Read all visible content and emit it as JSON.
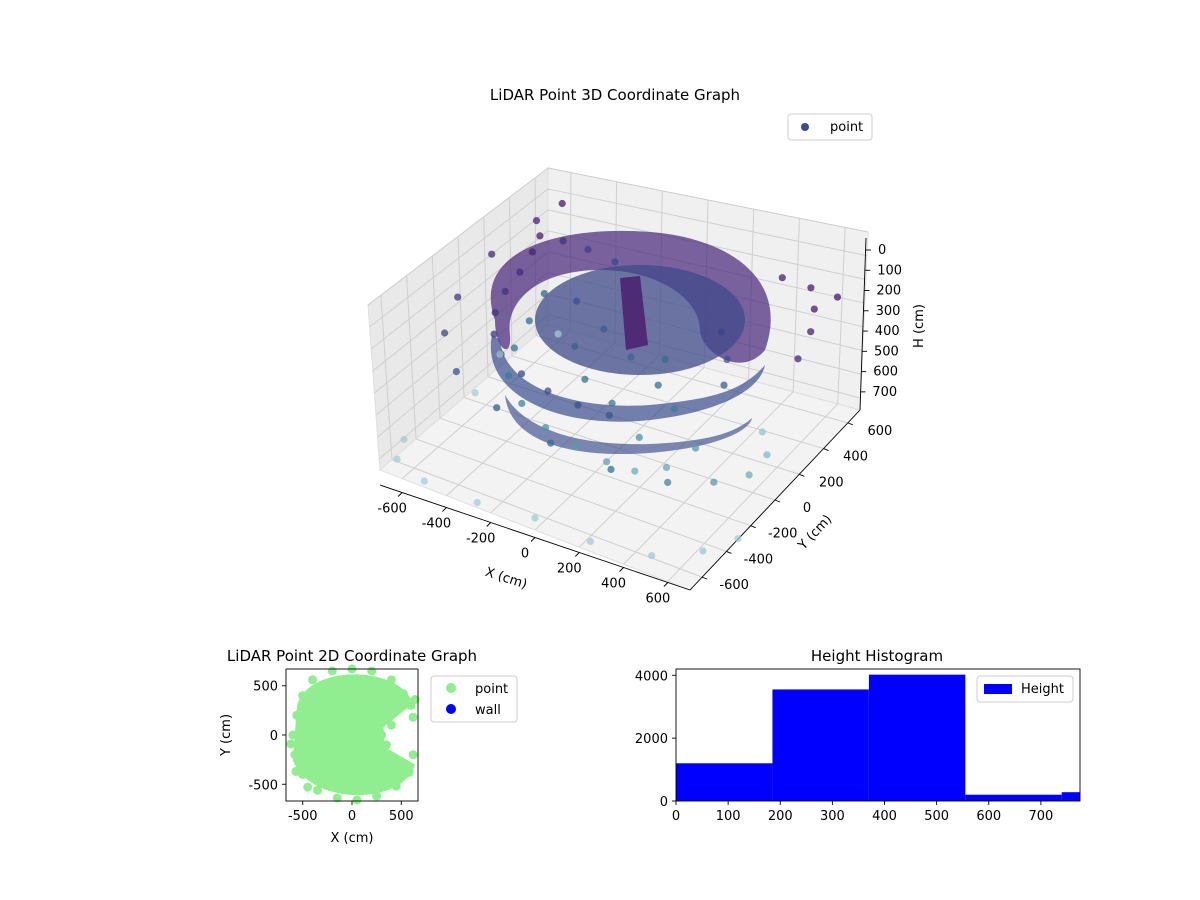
{
  "chart_data": [
    {
      "type": "scatter",
      "projection": "3d",
      "title": "LiDAR Point 3D Coordinate Graph",
      "xlabel": "X (cm)",
      "ylabel": "Y (cm)",
      "zlabel": "H (cm)",
      "xlim": [
        -700,
        700
      ],
      "ylim": [
        -700,
        700
      ],
      "zlim": [
        0,
        750
      ],
      "z_inverted": true,
      "xticks": [
        -600,
        -400,
        -200,
        0,
        200,
        400,
        600
      ],
      "yticks": [
        -600,
        -400,
        -200,
        0,
        200,
        400,
        600
      ],
      "zticks": [
        0,
        100,
        200,
        300,
        400,
        500,
        600,
        700
      ],
      "grid": true,
      "colormap": "viridis (color by height)",
      "legend": {
        "entries": [
          "point"
        ],
        "placement": "top-right"
      },
      "series": [
        {
          "name": "point",
          "color": "#3b4c8c",
          "points": [
            [
              -520,
              300,
              20
            ],
            [
              -500,
              200,
              40
            ],
            [
              -480,
              60,
              60
            ],
            [
              -470,
              -80,
              80
            ],
            [
              -440,
              -220,
              100
            ],
            [
              -380,
              -340,
              120
            ],
            [
              -300,
              -430,
              140
            ],
            [
              -180,
              -480,
              160
            ],
            [
              -50,
              -500,
              180
            ],
            [
              80,
              -490,
              200
            ],
            [
              200,
              -450,
              220
            ],
            [
              -500,
              300,
              300
            ],
            [
              -470,
              120,
              330
            ],
            [
              -440,
              -60,
              360
            ],
            [
              -380,
              -220,
              390
            ],
            [
              -260,
              -330,
              420
            ],
            [
              -120,
              -390,
              450
            ],
            [
              20,
              -400,
              480
            ],
            [
              150,
              -380,
              510
            ],
            [
              250,
              -330,
              540
            ],
            [
              -300,
              200,
              200
            ],
            [
              -150,
              150,
              250
            ],
            [
              0,
              100,
              300
            ],
            [
              150,
              50,
              350
            ],
            [
              250,
              0,
              400
            ],
            [
              -100,
              -100,
              350
            ],
            [
              50,
              -150,
              380
            ],
            [
              100,
              200,
              320
            ],
            [
              -200,
              0,
              280
            ],
            [
              200,
              -200,
              460
            ],
            [
              -480,
              420,
              90
            ],
            [
              -400,
              480,
              130
            ],
            [
              -300,
              520,
              170
            ],
            [
              300,
              300,
              150
            ],
            [
              380,
              200,
              200
            ],
            [
              420,
              100,
              260
            ],
            [
              400,
              -100,
              480
            ],
            [
              350,
              -250,
              520
            ],
            [
              -560,
              560,
              10
            ],
            [
              -600,
              420,
              40
            ],
            [
              -640,
              120,
              70
            ],
            [
              -620,
              -200,
              110
            ],
            [
              -560,
              -420,
              150
            ],
            [
              -420,
              -580,
              200
            ],
            [
              -200,
              -650,
              250
            ],
            [
              60,
              -680,
              300
            ],
            [
              300,
              -620,
              360
            ],
            [
              480,
              -480,
              420
            ],
            [
              580,
              -280,
              480
            ],
            [
              620,
              -60,
              540
            ],
            [
              560,
              200,
              600
            ],
            [
              420,
              420,
              660
            ],
            [
              640,
              640,
              5
            ],
            [
              600,
              520,
              20
            ],
            [
              660,
              380,
              35
            ],
            [
              520,
              640,
              10
            ],
            [
              700,
              200,
              60
            ],
            [
              380,
              660,
              30
            ],
            [
              -650,
              -650,
              700
            ],
            [
              -500,
              -700,
              720
            ],
            [
              -700,
              -500,
              700
            ],
            [
              -250,
              -720,
              710
            ],
            [
              0,
              -700,
              690
            ],
            [
              250,
              -700,
              700
            ],
            [
              500,
              -650,
              690
            ],
            [
              650,
              -500,
              680
            ],
            [
              700,
              -300,
              700
            ],
            [
              -650,
              0,
              705
            ],
            [
              -700,
              300,
              690
            ],
            [
              -600,
              600,
              700
            ]
          ]
        }
      ]
    },
    {
      "type": "scatter",
      "title": "LiDAR Point 2D Coordinate Graph",
      "xlabel": "X (cm)",
      "ylabel": "Y (cm)",
      "xlim": [
        -670,
        670
      ],
      "ylim": [
        -670,
        670
      ],
      "xticks": [
        -500,
        0,
        500
      ],
      "yticks": [
        -500,
        0,
        500
      ],
      "legend": {
        "entries": [
          "point",
          "wall"
        ],
        "placement": "outside-right"
      },
      "series": [
        {
          "name": "point",
          "color": "#90ee90",
          "points": [
            [
              -500,
              400
            ],
            [
              -400,
              560
            ],
            [
              -200,
              650
            ],
            [
              0,
              670
            ],
            [
              200,
              650
            ],
            [
              400,
              560
            ],
            [
              520,
              420
            ],
            [
              600,
              300
            ],
            [
              -560,
              200
            ],
            [
              -600,
              0
            ],
            [
              -580,
              -200
            ],
            [
              -500,
              -400
            ],
            [
              -350,
              -560
            ],
            [
              -150,
              -640
            ],
            [
              50,
              -660
            ],
            [
              250,
              -620
            ],
            [
              450,
              -520
            ],
            [
              580,
              -380
            ],
            [
              620,
              -200
            ],
            [
              -620,
              -90
            ],
            [
              -570,
              -370
            ],
            [
              -450,
              -530
            ],
            [
              640,
              360
            ],
            [
              620,
              180
            ],
            [
              300,
              0
            ],
            [
              350,
              -100
            ],
            [
              400,
              100
            ],
            [
              150,
              300
            ],
            [
              -200,
              300
            ],
            [
              -200,
              -300
            ],
            [
              100,
              -400
            ]
          ]
        },
        {
          "name": "wall",
          "color": "#0000ff",
          "points": []
        }
      ]
    },
    {
      "type": "bar",
      "subtype": "histogram",
      "title": "Height Histogram",
      "xlim": [
        0,
        775
      ],
      "ylim": [
        0,
        4200
      ],
      "xticks": [
        0,
        100,
        200,
        300,
        400,
        500,
        600,
        700
      ],
      "yticks": [
        0,
        2000,
        4000
      ],
      "legend": {
        "entries": [
          "Height"
        ],
        "placement": "top-right"
      },
      "series": [
        {
          "name": "Height",
          "color": "#0000ff",
          "bins": [
            {
              "start": 0,
              "end": 185,
              "count": 1200
            },
            {
              "start": 185,
              "end": 370,
              "count": 3550
            },
            {
              "start": 370,
              "end": 555,
              "count": 4020
            },
            {
              "start": 555,
              "end": 740,
              "count": 200
            },
            {
              "start": 740,
              "end": 775,
              "count": 280
            }
          ]
        }
      ]
    }
  ]
}
